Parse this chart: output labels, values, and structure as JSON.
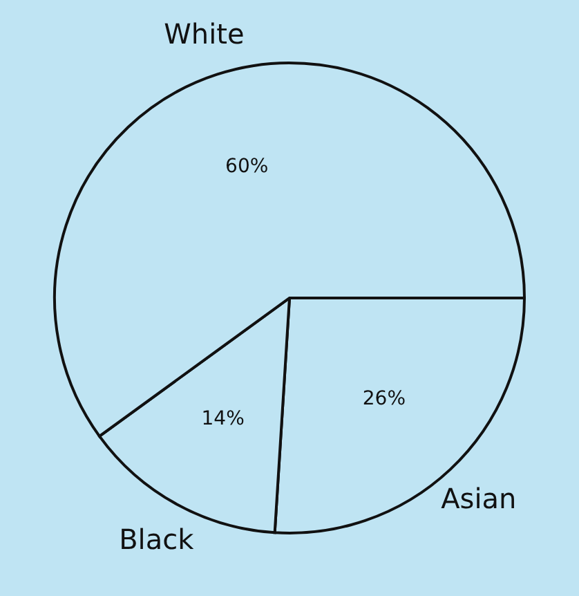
{
  "chart_data": {
    "type": "pie",
    "categories": [
      "Asian",
      "Black",
      "White"
    ],
    "values": [
      26,
      14,
      60
    ],
    "value_labels": [
      "26%",
      "14%",
      "60%"
    ],
    "colors": [
      "#bfe4f3",
      "#bfe4f3",
      "#bfe4f3"
    ],
    "legend": false
  }
}
